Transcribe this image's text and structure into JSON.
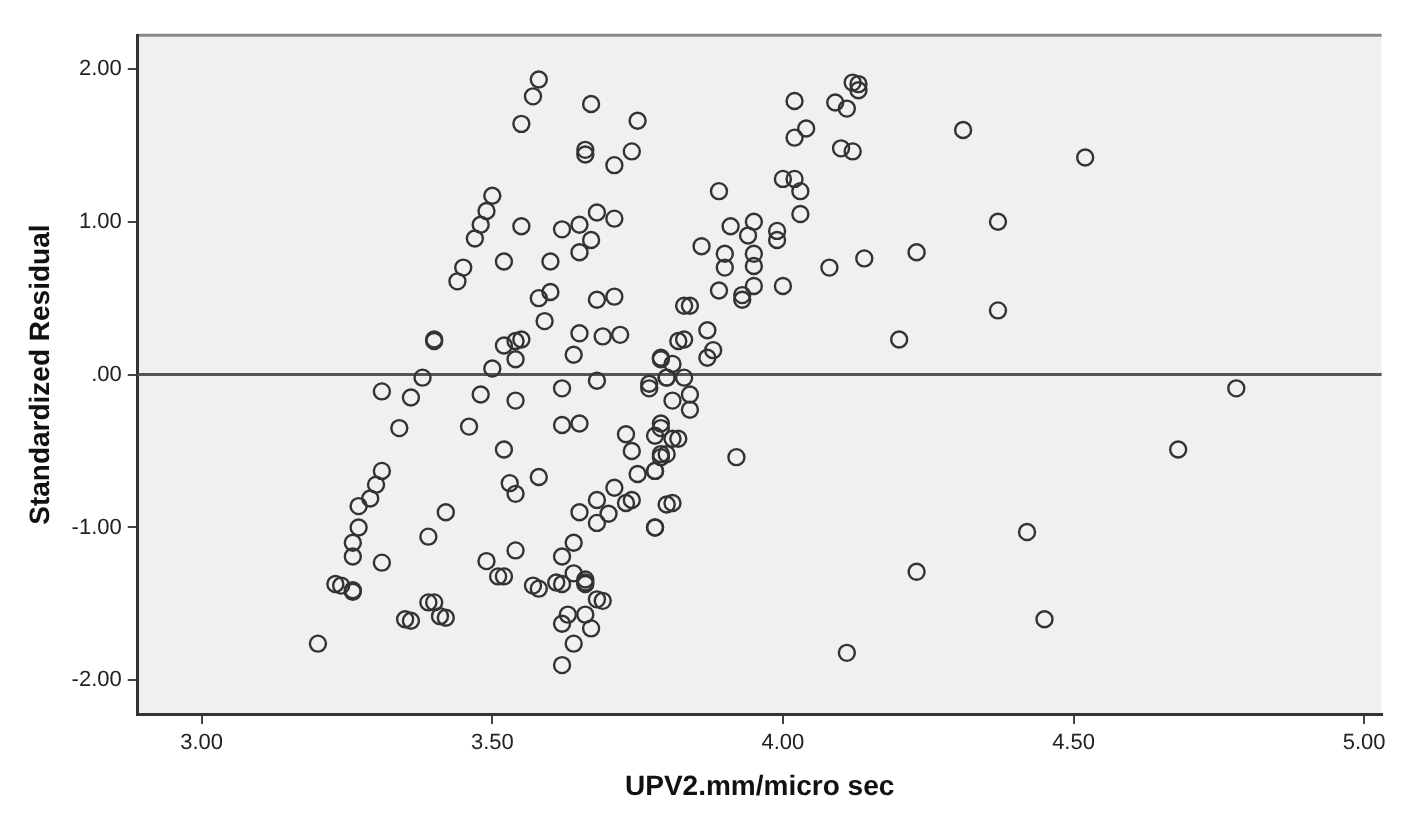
{
  "chart_data": {
    "type": "scatter",
    "xlabel": "UPV2.mm/micro sec",
    "ylabel": "Standardized Residual",
    "marker": "circle",
    "grid": false,
    "legend": false,
    "xlim": [
      2.89,
      5.03
    ],
    "ylim": [
      -2.22,
      2.22
    ],
    "xticks": [
      {
        "value": 3,
        "label": "3.00"
      },
      {
        "value": 3.5,
        "label": "3.50"
      },
      {
        "value": 4,
        "label": "4.00"
      },
      {
        "value": 4.5,
        "label": "4.50"
      },
      {
        "value": 5,
        "label": "5.00"
      }
    ],
    "yticks": [
      {
        "value": -2,
        "label": "-2.00"
      },
      {
        "value": -1,
        "label": "-1.00"
      },
      {
        "value": 0,
        "label": ".00"
      },
      {
        "value": 1,
        "label": "1.00"
      },
      {
        "value": 2,
        "label": "2.00"
      }
    ],
    "ref_lines": [
      {
        "axis": "y",
        "value": 0,
        "color": "#555555"
      }
    ],
    "series": [
      {
        "color": "#333333",
        "x": [
          3.58,
          3.57,
          3.55,
          3.67,
          3.75,
          3.66,
          3.66,
          3.74,
          3.71,
          3.5,
          3.49,
          3.48,
          3.47,
          3.55,
          3.62,
          3.65,
          3.68,
          3.71,
          3.67,
          3.65,
          3.6,
          3.52,
          3.45,
          3.44,
          3.58,
          3.6,
          3.68,
          3.71,
          3.83,
          3.4,
          3.4,
          3.59,
          3.65,
          3.69,
          3.72,
          3.52,
          3.54,
          3.55,
          3.54,
          3.64,
          3.5,
          3.38,
          3.31,
          3.36,
          3.48,
          3.54,
          3.62,
          3.68,
          3.34,
          3.46,
          3.62,
          3.65,
          3.52,
          3.31,
          3.3,
          3.29,
          3.27,
          3.27,
          3.26,
          3.26,
          3.23,
          3.26,
          3.31,
          3.39,
          3.42,
          3.53,
          3.54,
          3.58,
          3.49,
          3.51,
          3.54,
          3.57,
          3.61,
          3.62,
          3.64,
          3.65,
          3.68,
          3.68,
          3.7,
          3.71,
          3.73,
          3.74,
          3.75,
          3.74,
          3.73,
          3.78,
          3.81,
          3.81,
          3.66,
          3.66,
          3.68,
          3.64,
          3.39,
          3.41,
          3.35,
          3.77,
          3.79,
          3.8,
          3.79,
          3.79,
          3.78,
          3.8,
          3.82,
          4.12,
          4.13,
          4.13,
          4.09,
          4.11,
          4.02,
          4.04,
          4.02,
          4.31,
          4.52,
          4.1,
          4.12,
          4.0,
          4.02,
          4.03,
          3.89,
          4.03,
          3.91,
          3.95,
          3.94,
          3.99,
          3.99,
          3.86,
          3.9,
          3.9,
          3.95,
          3.95,
          3.95,
          4.0,
          4.08,
          4.14,
          4.23,
          4.37,
          3.89,
          3.93,
          3.93,
          3.84,
          4.37,
          3.83,
          3.87,
          3.87,
          3.88,
          3.79,
          3.81,
          3.8,
          3.83,
          3.77,
          3.84,
          3.84,
          3.81,
          4.2,
          4.78,
          3.79,
          3.82,
          3.78,
          3.79,
          3.78,
          3.92,
          3.8,
          3.78,
          4.68,
          4.42,
          4.23,
          4.45,
          3.24,
          3.26,
          3.2,
          3.4,
          3.36,
          3.42,
          3.52,
          3.58,
          3.62,
          3.63,
          3.62,
          3.66,
          3.67,
          3.64,
          3.62,
          3.69,
          3.66,
          4.11
        ],
        "values": [
          1.93,
          1.82,
          1.64,
          1.77,
          1.66,
          1.47,
          1.44,
          1.46,
          1.37,
          1.17,
          1.07,
          0.98,
          0.89,
          0.97,
          0.95,
          0.98,
          1.06,
          1.02,
          0.88,
          0.8,
          0.74,
          0.74,
          0.7,
          0.61,
          0.5,
          0.54,
          0.49,
          0.51,
          0.45,
          0.23,
          0.22,
          0.35,
          0.27,
          0.25,
          0.26,
          0.19,
          0.22,
          0.23,
          0.1,
          0.13,
          0.04,
          -0.02,
          -0.11,
          -0.15,
          -0.13,
          -0.17,
          -0.09,
          -0.04,
          -0.35,
          -0.34,
          -0.33,
          -0.32,
          -0.49,
          -0.63,
          -0.72,
          -0.81,
          -0.86,
          -1.0,
          -1.1,
          -1.19,
          -1.37,
          -1.42,
          -1.23,
          -1.06,
          -0.9,
          -0.71,
          -0.78,
          -0.67,
          -1.22,
          -1.32,
          -1.15,
          -1.38,
          -1.36,
          -1.19,
          -1.1,
          -0.9,
          -0.82,
          -0.97,
          -0.91,
          -0.74,
          -0.39,
          -0.5,
          -0.65,
          -0.82,
          -0.84,
          -1.0,
          -0.84,
          -0.42,
          -1.34,
          -1.36,
          -1.47,
          -1.3,
          -1.49,
          -1.58,
          -1.6,
          -0.06,
          0.11,
          -0.02,
          -0.32,
          -0.54,
          -0.63,
          -0.52,
          0.22,
          1.91,
          1.9,
          1.86,
          1.78,
          1.74,
          1.79,
          1.61,
          1.55,
          1.6,
          1.42,
          1.48,
          1.46,
          1.28,
          1.28,
          1.2,
          1.2,
          1.05,
          0.97,
          1.0,
          0.91,
          0.94,
          0.88,
          0.84,
          0.79,
          0.7,
          0.79,
          0.71,
          0.58,
          0.58,
          0.7,
          0.76,
          0.8,
          1.0,
          0.55,
          0.52,
          0.49,
          0.45,
          0.42,
          0.23,
          0.29,
          0.11,
          0.16,
          0.1,
          0.07,
          -0.02,
          -0.02,
          -0.09,
          -0.13,
          -0.23,
          -0.17,
          0.23,
          -0.09,
          -0.35,
          -0.42,
          -0.4,
          -0.52,
          -0.63,
          -0.54,
          -0.85,
          -1.0,
          -0.49,
          -1.03,
          -1.29,
          -1.6,
          -1.38,
          -1.41,
          -1.76,
          -1.49,
          -1.61,
          -1.59,
          -1.32,
          -1.4,
          -1.37,
          -1.57,
          -1.63,
          -1.57,
          -1.66,
          -1.76,
          -1.9,
          -1.48,
          -1.37,
          -1.82
        ]
      }
    ]
  }
}
